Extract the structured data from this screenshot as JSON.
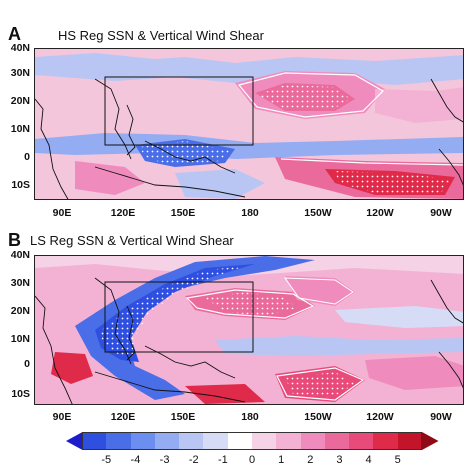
{
  "panels": [
    {
      "letter": "A",
      "title": "HS Reg SSN & Vertical Wind Shear",
      "lat_labels": [
        "40N",
        "30N",
        "20N",
        "10N",
        "0",
        "10S"
      ],
      "lon_labels": [
        "90E",
        "120E",
        "150E",
        "180",
        "150W",
        "120W",
        "90W"
      ]
    },
    {
      "letter": "B",
      "title": "LS Reg SSN & Vertical Wind Shear",
      "lat_labels": [
        "40N",
        "30N",
        "20N",
        "10N",
        "0",
        "10S"
      ],
      "lon_labels": [
        "90E",
        "120E",
        "150E",
        "180",
        "150W",
        "120W",
        "90W"
      ]
    }
  ],
  "colorbar": {
    "ticks": [
      "-5",
      "-4",
      "-3",
      "-2",
      "-1",
      "0",
      "1",
      "2",
      "3",
      "4",
      "5"
    ],
    "colors": [
      "#1c1ccc",
      "#2e4fe0",
      "#4a6ee8",
      "#6b8ef0",
      "#93acf2",
      "#b9c6f4",
      "#d7dcf6",
      "#ffffff",
      "#f6d2e6",
      "#f3b2d4",
      "#f08cbd",
      "#eb6a9c",
      "#e84a7a",
      "#e02a4a",
      "#c4142a",
      "#8e0a14"
    ]
  }
}
